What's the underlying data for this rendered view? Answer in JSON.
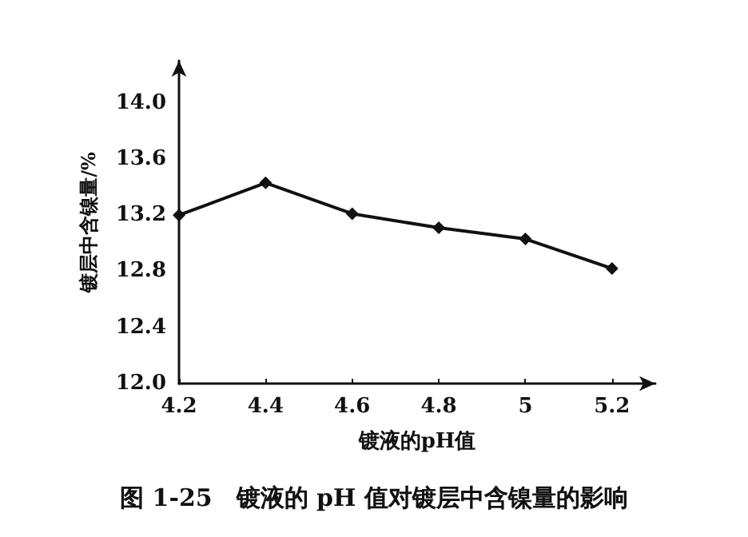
{
  "chart_data": {
    "type": "line",
    "title": "图 1-25　镀液的 pH 值对镀层中含镍量的影响",
    "xlabel": "镀液的pH值",
    "ylabel": "镀层中含镍量/%",
    "x": [
      4.2,
      4.4,
      4.6,
      4.8,
      5,
      5.2
    ],
    "series": [
      {
        "color": "#111111",
        "values": [
          13.2,
          13.43,
          13.21,
          13.11,
          13.03,
          12.82
        ]
      }
    ],
    "xlim": [
      4.2,
      5.3
    ],
    "ylim": [
      12.0,
      14.3
    ],
    "xticks": [
      {
        "value": 4.2,
        "label": "4.2"
      },
      {
        "value": 4.4,
        "label": "4.4"
      },
      {
        "value": 4.6,
        "label": "4.6"
      },
      {
        "value": 4.8,
        "label": "4.8"
      },
      5,
      {
        "value": 5.2,
        "label": "5.2"
      }
    ],
    "yticks": [
      {
        "value": 12,
        "label": "12.0"
      },
      {
        "value": 12.4,
        "label": "12.4"
      },
      {
        "value": 12.8,
        "label": "12.8"
      },
      {
        "value": 13.2,
        "label": "13.2"
      },
      {
        "value": 13.6,
        "label": "13.6"
      },
      {
        "value": 14,
        "label": "14.0"
      }
    ],
    "grid": false,
    "marker": "diamond",
    "line_style": "solid"
  }
}
